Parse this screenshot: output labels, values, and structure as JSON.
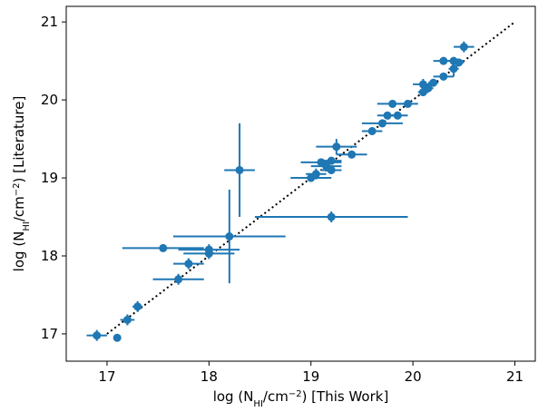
{
  "chart_data": {
    "type": "scatter",
    "title": "",
    "xlabel": {
      "prefix": "log (N",
      "subscript": "HI",
      "middle": "/cm",
      "superscript": "−2",
      "suffix": ") [This Work]"
    },
    "ylabel": {
      "prefix": "log (N",
      "subscript": "HI",
      "middle": "/cm",
      "superscript": "−2",
      "suffix": ") [Literature]"
    },
    "xlim": [
      16.6,
      21.2
    ],
    "ylim": [
      16.65,
      21.2
    ],
    "xticks": [
      17,
      18,
      19,
      20,
      21
    ],
    "yticks": [
      17,
      18,
      19,
      20,
      21
    ],
    "xtick_labels": [
      "17",
      "18",
      "19",
      "20",
      "21"
    ],
    "ytick_labels": [
      "17",
      "18",
      "19",
      "20",
      "21"
    ],
    "grid": false,
    "legend": null,
    "reference_line": {
      "style": "dotted",
      "color": "#000000",
      "from": [
        17,
        17
      ],
      "to": [
        21,
        21
      ]
    },
    "marker_color": "#1f77b4",
    "series": [
      {
        "points": [
          {
            "x": 16.9,
            "y": 16.98,
            "xerr": 0.1,
            "yerr": 0.07
          },
          {
            "x": 17.1,
            "y": 16.95,
            "xerr": 0,
            "yerr": 0
          },
          {
            "x": 17.2,
            "y": 17.18,
            "xerr": 0.07,
            "yerr": 0.07
          },
          {
            "x": 17.3,
            "y": 17.35,
            "xerr": 0.05,
            "yerr": 0.07
          },
          {
            "x": 17.55,
            "y": 18.1,
            "xerr": 0.4,
            "yerr": 0
          },
          {
            "x": 17.7,
            "y": 17.7,
            "xerr": 0.25,
            "yerr": 0.07
          },
          {
            "x": 17.8,
            "y": 17.9,
            "xerr": 0.15,
            "yerr": 0.07
          },
          {
            "x": 18.0,
            "y": 18.08,
            "xerr": 0.3,
            "yerr": 0.07
          },
          {
            "x": 18.0,
            "y": 18.03,
            "xerr": 0.25,
            "yerr": 0.07
          },
          {
            "x": 18.2,
            "y": 18.25,
            "xerr": 0.55,
            "yerr": 0.6
          },
          {
            "x": 18.3,
            "y": 19.1,
            "xerr": 0.15,
            "yerr": 0.6
          },
          {
            "x": 19.2,
            "y": 18.5,
            "xerr": 0.75,
            "yerr": 0.07
          },
          {
            "x": 19.0,
            "y": 19.0,
            "xerr": 0.2,
            "yerr": 0.05
          },
          {
            "x": 19.05,
            "y": 19.05,
            "xerr": 0.1,
            "yerr": 0.07
          },
          {
            "x": 19.1,
            "y": 19.2,
            "xerr": 0.2,
            "yerr": 0.05
          },
          {
            "x": 19.15,
            "y": 19.15,
            "xerr": 0.15,
            "yerr": 0.07
          },
          {
            "x": 19.2,
            "y": 19.1,
            "xerr": 0.1,
            "yerr": 0.05
          },
          {
            "x": 19.2,
            "y": 19.22,
            "xerr": 0.1,
            "yerr": 0.05
          },
          {
            "x": 19.25,
            "y": 19.4,
            "xerr": 0.2,
            "yerr": 0.1
          },
          {
            "x": 19.4,
            "y": 19.3,
            "xerr": 0.15,
            "yerr": 0.05
          },
          {
            "x": 19.6,
            "y": 19.6,
            "xerr": 0.1,
            "yerr": 0.05
          },
          {
            "x": 19.7,
            "y": 19.7,
            "xerr": 0.2,
            "yerr": 0.05
          },
          {
            "x": 19.75,
            "y": 19.8,
            "xerr": 0.1,
            "yerr": 0.05
          },
          {
            "x": 19.8,
            "y": 19.95,
            "xerr": 0.15,
            "yerr": 0.05
          },
          {
            "x": 19.85,
            "y": 19.8,
            "xerr": 0.1,
            "yerr": 0.05
          },
          {
            "x": 19.95,
            "y": 19.95,
            "xerr": 0.1,
            "yerr": 0.05
          },
          {
            "x": 20.1,
            "y": 20.1,
            "xerr": 0.05,
            "yerr": 0.05
          },
          {
            "x": 20.1,
            "y": 20.2,
            "xerr": 0.1,
            "yerr": 0.07
          },
          {
            "x": 20.15,
            "y": 20.15,
            "xerr": 0.05,
            "yerr": 0.05
          },
          {
            "x": 20.2,
            "y": 20.22,
            "xerr": 0.05,
            "yerr": 0.05
          },
          {
            "x": 20.3,
            "y": 20.3,
            "xerr": 0.1,
            "yerr": 0.05
          },
          {
            "x": 20.3,
            "y": 20.5,
            "xerr": 0.1,
            "yerr": 0.05
          },
          {
            "x": 20.4,
            "y": 20.4,
            "xerr": 0.05,
            "yerr": 0.1
          },
          {
            "x": 20.4,
            "y": 20.5,
            "xerr": 0.1,
            "yerr": 0.05
          },
          {
            "x": 20.45,
            "y": 20.48,
            "xerr": 0.05,
            "yerr": 0.05
          },
          {
            "x": 20.5,
            "y": 20.68,
            "xerr": 0.1,
            "yerr": 0.07
          }
        ]
      }
    ]
  }
}
